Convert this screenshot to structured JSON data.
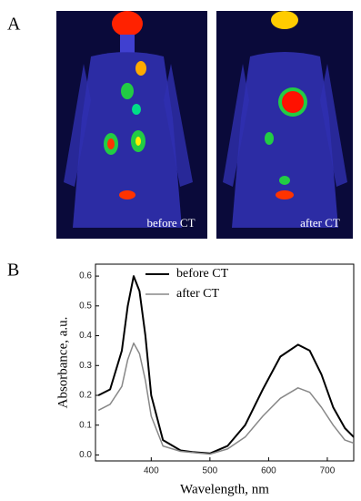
{
  "panels": {
    "a_label": "A",
    "b_label": "B",
    "image_left_caption": "before CT",
    "image_right_caption": "after CT"
  },
  "chart_data": {
    "type": "line",
    "x_label": "Wavelength, nm",
    "y_label": "Absorbance, a.u.",
    "x": [
      310,
      330,
      350,
      360,
      370,
      380,
      390,
      400,
      420,
      450,
      470,
      500,
      530,
      560,
      590,
      620,
      650,
      670,
      690,
      710,
      730,
      745
    ],
    "series": [
      {
        "name": "before CT",
        "color": "#000000",
        "values": [
          0.2,
          0.22,
          0.35,
          0.5,
          0.6,
          0.55,
          0.4,
          0.2,
          0.05,
          0.015,
          0.01,
          0.005,
          0.03,
          0.1,
          0.22,
          0.33,
          0.37,
          0.35,
          0.27,
          0.16,
          0.09,
          0.06
        ]
      },
      {
        "name": "after CT",
        "color": "#888888",
        "values": [
          0.15,
          0.17,
          0.23,
          0.32,
          0.375,
          0.34,
          0.25,
          0.13,
          0.03,
          0.012,
          0.008,
          0.003,
          0.02,
          0.06,
          0.13,
          0.19,
          0.225,
          0.21,
          0.16,
          0.1,
          0.05,
          0.04
        ]
      }
    ],
    "xlim": [
      305,
      745
    ],
    "ylim": [
      -0.02,
      0.64
    ],
    "xticks": [
      400,
      500,
      600,
      700
    ],
    "yticks": [
      {
        "value": 0,
        "label": "0.0"
      },
      0.1,
      0.2,
      0.3,
      0.4,
      0.5,
      0.6
    ]
  }
}
